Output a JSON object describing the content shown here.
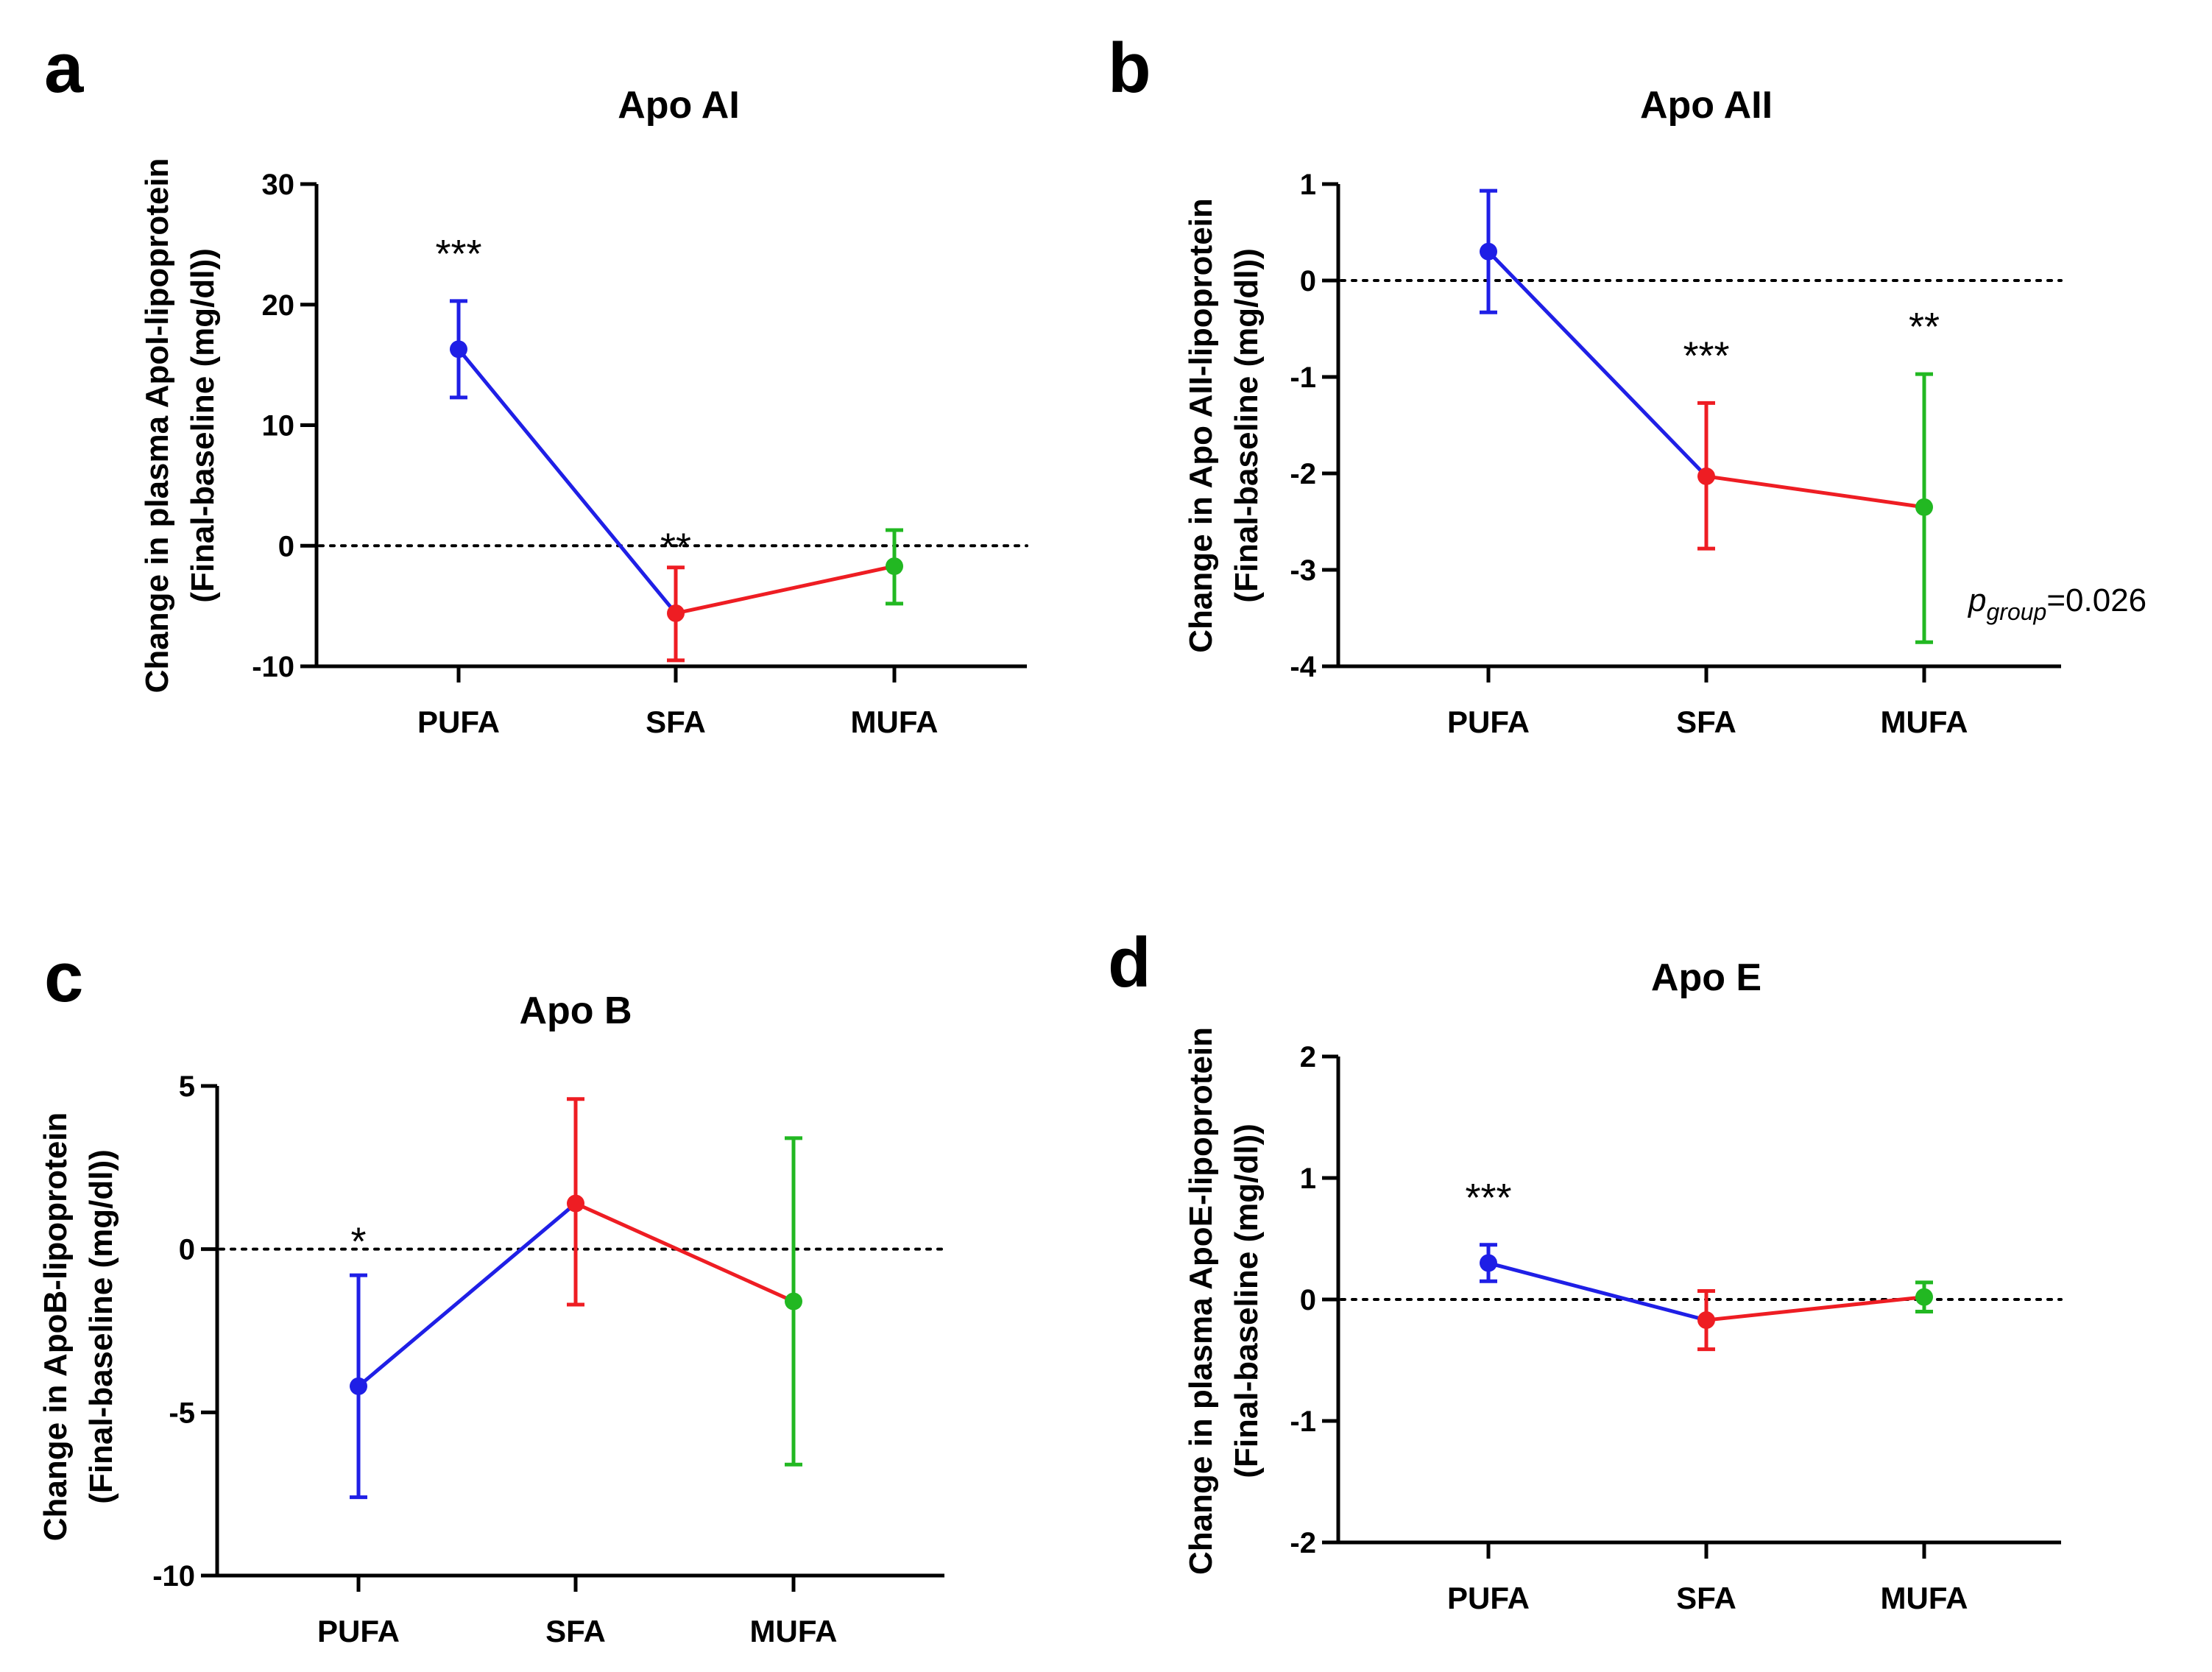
{
  "chart_data": [
    {
      "panel": "a",
      "type": "line",
      "title": "Apo AI",
      "ylabel_lines": [
        "Change in plasma ApoI-lipoprotein",
        "(Final-baseline (mg/dl))"
      ],
      "xlabel": "",
      "categories": [
        "PUFA",
        "SFA",
        "MUFA"
      ],
      "ylim": [
        -10,
        30
      ],
      "yticks": [
        -10,
        0,
        10,
        20,
        30
      ],
      "ytick_labels": [
        "-10",
        "0",
        "10",
        "20",
        "30"
      ],
      "values": [
        16.3,
        -5.6,
        -1.7
      ],
      "err_low": [
        12.3,
        -9.5,
        -4.8
      ],
      "err_high": [
        20.3,
        -1.8,
        1.3
      ],
      "point_colors": [
        "#1f1fe6",
        "#ee1d23",
        "#22b822"
      ],
      "segment_colors": [
        "#1f1fe6",
        "#ee1d23"
      ],
      "significance": [
        "***",
        "**",
        ""
      ],
      "reference_line": 0,
      "annotation": null
    },
    {
      "panel": "b",
      "type": "line",
      "title": "Apo AII",
      "ylabel_lines": [
        "Change in Apo AII-lipoprotein",
        "(Final-baseline (mg/dl))"
      ],
      "xlabel": "",
      "categories": [
        "PUFA",
        "SFA",
        "MUFA"
      ],
      "ylim": [
        -4,
        1
      ],
      "yticks": [
        -4,
        -3,
        -2,
        -1,
        0,
        1
      ],
      "ytick_labels": [
        "-4",
        "-3",
        "-2",
        "-1",
        "0",
        "1"
      ],
      "values": [
        0.3,
        -2.03,
        -2.35
      ],
      "err_low": [
        -0.33,
        -2.78,
        -3.75
      ],
      "err_high": [
        0.93,
        -1.27,
        -0.97
      ],
      "point_colors": [
        "#1f1fe6",
        "#ee1d23",
        "#22b822"
      ],
      "segment_colors": [
        "#1f1fe6",
        "#ee1d23"
      ],
      "significance": [
        "",
        "***",
        "**"
      ],
      "reference_line": 0,
      "annotation": {
        "p": "p",
        "sub": "group",
        "value": "=0.026"
      }
    },
    {
      "panel": "c",
      "type": "line",
      "title": "Apo B",
      "ylabel_lines": [
        "Change in ApoB-lipoprotein",
        "(Final-baseline (mg/dl))"
      ],
      "xlabel": "",
      "categories": [
        "PUFA",
        "SFA",
        "MUFA"
      ],
      "ylim": [
        -10,
        5
      ],
      "yticks": [
        -10,
        -5,
        0,
        5
      ],
      "ytick_labels": [
        "-10",
        "-5",
        "0",
        "5"
      ],
      "values": [
        -4.2,
        1.4,
        -1.6
      ],
      "err_low": [
        -7.6,
        -1.7,
        -6.6
      ],
      "err_high": [
        -0.8,
        4.6,
        3.4
      ],
      "point_colors": [
        "#1f1fe6",
        "#ee1d23",
        "#22b822"
      ],
      "segment_colors": [
        "#1f1fe6",
        "#ee1d23"
      ],
      "significance": [
        "*",
        "",
        ""
      ],
      "reference_line": 0,
      "annotation": null
    },
    {
      "panel": "d",
      "type": "line",
      "title": "Apo E",
      "ylabel_lines": [
        "Change in plasma  ApoE-lipoprotein",
        "(Final-baseline (mg/dl))"
      ],
      "xlabel": "",
      "categories": [
        "PUFA",
        "SFA",
        "MUFA"
      ],
      "ylim": [
        -2,
        2
      ],
      "yticks": [
        -2,
        -1,
        0,
        1,
        2
      ],
      "ytick_labels": [
        "-2",
        "-1",
        "0",
        "1",
        "2"
      ],
      "values": [
        0.3,
        -0.17,
        0.02
      ],
      "err_low": [
        0.15,
        -0.41,
        -0.1
      ],
      "err_high": [
        0.45,
        0.07,
        0.14
      ],
      "point_colors": [
        "#1f1fe6",
        "#ee1d23",
        "#22b822"
      ],
      "segment_colors": [
        "#1f1fe6",
        "#ee1d23"
      ],
      "significance": [
        "***",
        "",
        ""
      ],
      "reference_line": 0,
      "annotation": null
    }
  ]
}
